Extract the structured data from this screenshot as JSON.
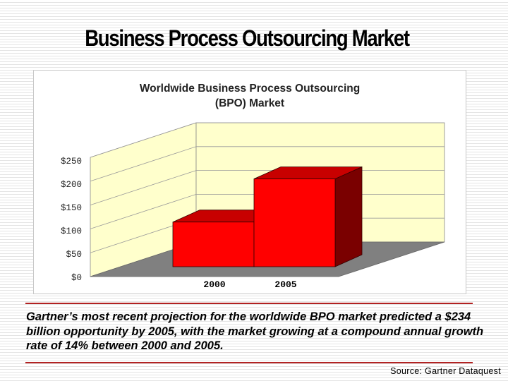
{
  "slide": {
    "title": "Business Process Outsourcing Market",
    "caption": "Gartner’s most recent projection for the worldwide BPO market predicted a $234 billion opportunity by 2005, with the market growing at a compound annual growth rate of 14% between 2000 and 2005.",
    "source": "Source: Gartner Dataquest"
  },
  "chart_data": {
    "type": "bar",
    "title_lines": [
      "Worldwide Business Process Outsourcing",
      "(BPO) Market"
    ],
    "categories": [
      "2000",
      "2005"
    ],
    "values": [
      119,
      234
    ],
    "yticks": [
      "$0",
      "$50",
      "$100",
      "$150",
      "$200",
      "$250"
    ],
    "ylim": [
      0,
      250
    ],
    "grid": true,
    "legend": "none",
    "colors": {
      "bar_front": "#ff0000",
      "bar_top": "#c80000",
      "bar_side": "#7a0000",
      "wall": "#ffffcc",
      "floor": "#808080",
      "grid": "#9a9a9a"
    }
  }
}
